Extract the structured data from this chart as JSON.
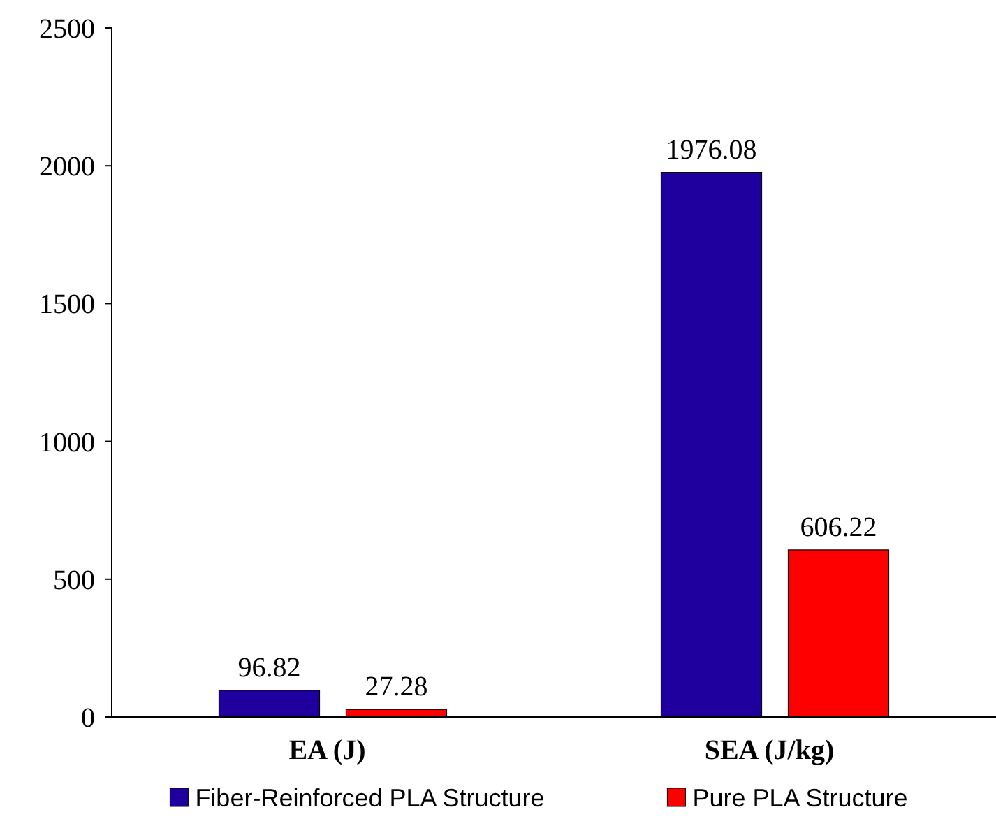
{
  "chart_data": {
    "type": "bar",
    "categories": [
      "EA (J)",
      "SEA (J/kg)"
    ],
    "series": [
      {
        "name": "Fiber-Reinforced PLA Structure",
        "color": "#1f009e",
        "values": [
          96.82,
          1976.08
        ]
      },
      {
        "name": "Pure PLA Structure",
        "color": "#ff0000",
        "values": [
          27.28,
          606.22
        ]
      }
    ],
    "ylim": [
      0,
      2500
    ],
    "yticks": [
      0,
      500,
      1000,
      1500,
      2000,
      2500
    ],
    "data_labels": true,
    "legend": "bottom",
    "grid": false
  }
}
